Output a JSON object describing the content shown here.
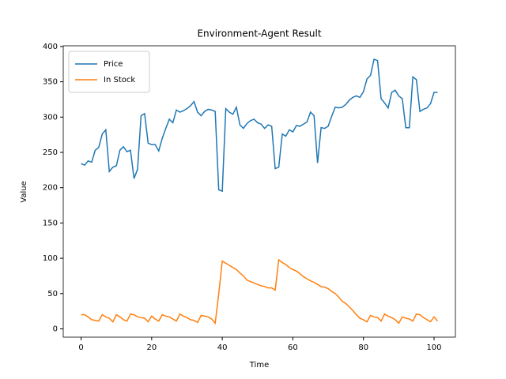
{
  "chart_data": {
    "type": "line",
    "title": "Environment-Agent Result",
    "xlabel": "Time",
    "ylabel": "Value",
    "x": [
      0,
      1,
      2,
      3,
      4,
      5,
      6,
      7,
      8,
      9,
      10,
      11,
      12,
      13,
      14,
      15,
      16,
      17,
      18,
      19,
      20,
      21,
      22,
      23,
      24,
      25,
      26,
      27,
      28,
      29,
      30,
      31,
      32,
      33,
      34,
      35,
      36,
      37,
      38,
      39,
      40,
      41,
      42,
      43,
      44,
      45,
      46,
      47,
      48,
      49,
      50,
      51,
      52,
      53,
      54,
      55,
      56,
      57,
      58,
      59,
      60,
      61,
      62,
      63,
      64,
      65,
      66,
      67,
      68,
      69,
      70,
      71,
      72,
      73,
      74,
      75,
      76,
      77,
      78,
      79,
      80,
      81,
      82,
      83,
      84,
      85,
      86,
      87,
      88,
      89,
      90,
      91,
      92,
      93,
      94,
      95,
      96,
      97,
      98,
      99,
      100,
      101
    ],
    "series": [
      {
        "name": "Price",
        "color": "#1f77b4",
        "values": [
          234,
          232,
          238,
          236,
          253,
          257,
          276,
          282,
          223,
          229,
          231,
          253,
          258,
          251,
          253,
          213,
          226,
          302,
          305,
          263,
          261,
          261,
          252,
          270,
          284,
          297,
          292,
          310,
          307,
          309,
          312,
          316,
          322,
          307,
          302,
          308,
          311,
          310,
          308,
          197,
          195,
          312,
          307,
          304,
          314,
          289,
          284,
          291,
          295,
          297,
          292,
          290,
          284,
          289,
          287,
          227,
          229,
          276,
          273,
          282,
          279,
          288,
          287,
          290,
          293,
          307,
          302,
          235,
          285,
          284,
          287,
          301,
          314,
          313,
          314,
          318,
          324,
          328,
          330,
          328,
          336,
          354,
          359,
          382,
          380,
          326,
          320,
          313,
          335,
          338,
          330,
          326,
          285,
          285,
          357,
          353,
          308,
          311,
          313,
          319,
          335,
          335
        ]
      },
      {
        "name": "In Stock",
        "color": "#ff7f0e",
        "values": [
          20,
          20,
          17,
          13,
          12,
          11,
          20,
          17,
          15,
          10,
          20,
          17,
          13,
          11,
          21,
          20,
          17,
          16,
          15,
          10,
          18,
          14,
          11,
          20,
          18,
          17,
          14,
          11,
          21,
          18,
          16,
          13,
          12,
          9,
          19,
          18,
          17,
          14,
          8,
          50,
          96,
          93,
          90,
          87,
          84,
          79,
          75,
          69,
          67,
          65,
          63,
          61,
          60,
          58,
          58,
          55,
          98,
          94,
          91,
          87,
          84,
          82,
          78,
          74,
          71,
          68,
          66,
          63,
          60,
          59,
          57,
          53,
          50,
          45,
          39,
          36,
          31,
          26,
          20,
          15,
          13,
          10,
          19,
          17,
          16,
          11,
          21,
          18,
          16,
          13,
          8,
          17,
          15,
          14,
          11,
          21,
          20,
          16,
          13,
          10,
          17,
          11
        ]
      }
    ],
    "xlim": [
      -5.05,
      106.05
    ],
    "ylim": [
      -11.75,
      401
    ],
    "xticks": [
      0,
      20,
      40,
      60,
      80,
      100
    ],
    "yticks": [
      0,
      50,
      100,
      150,
      200,
      250,
      300,
      350,
      400
    ],
    "legend": "upper left"
  }
}
